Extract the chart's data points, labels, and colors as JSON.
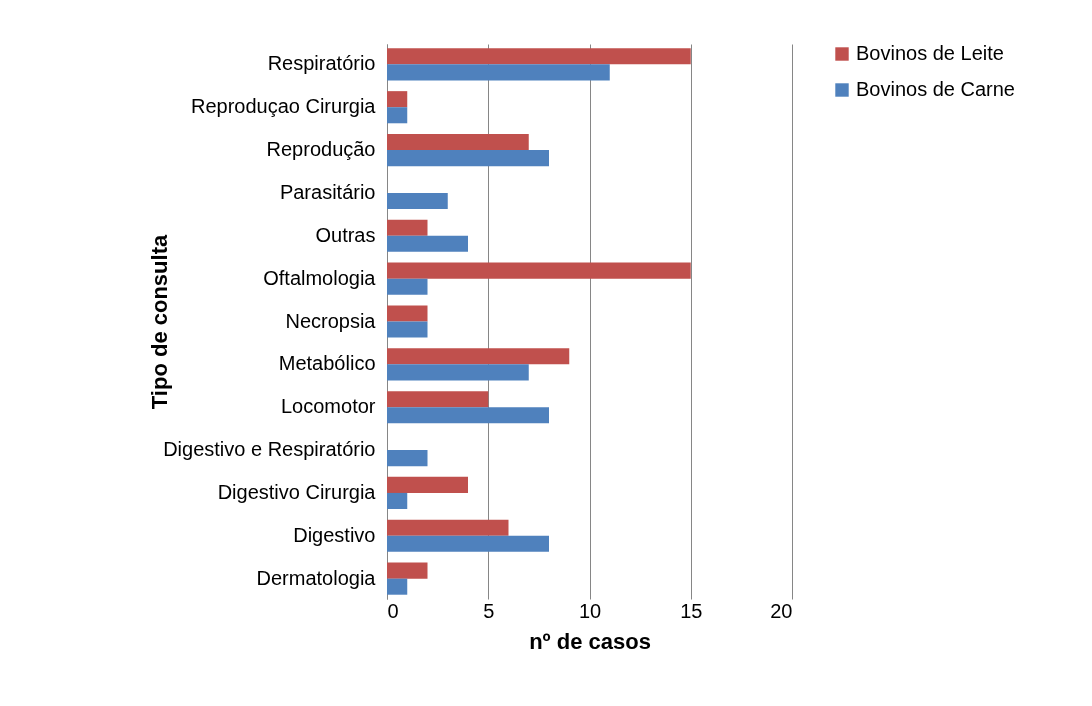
{
  "chart_data": {
    "type": "bar",
    "orientation": "horizontal",
    "xlabel": "nº de casos",
    "ylabel": "Tipo de consulta",
    "categories": [
      null,
      "Respiratório",
      "Reproduçao Cirurgia",
      "Reprodução",
      "Parasitário",
      "Outras",
      "Oftalmologia",
      "Necropsia",
      "Metabólico",
      "Locomotor",
      "Digestivo e Respiratório",
      "Digestivo Cirurgia",
      "Digestivo",
      "Dermatologia"
    ],
    "series": [
      {
        "name": "Bovinos de Leite",
        "color": "#c0504d",
        "values": [
          null,
          15,
          1,
          7,
          0,
          2,
          15,
          2,
          9,
          5,
          0,
          4,
          6,
          2
        ]
      },
      {
        "name": "Bovinos de Carne",
        "color": "#4f81bd",
        "values": [
          null,
          11,
          1,
          8,
          3,
          4,
          2,
          2,
          7,
          8,
          2,
          1,
          8,
          1
        ]
      }
    ],
    "xlim": [
      0,
      20
    ],
    "xticks": [
      0,
      5,
      10,
      15,
      20
    ],
    "grid": "x",
    "legend": "right"
  }
}
